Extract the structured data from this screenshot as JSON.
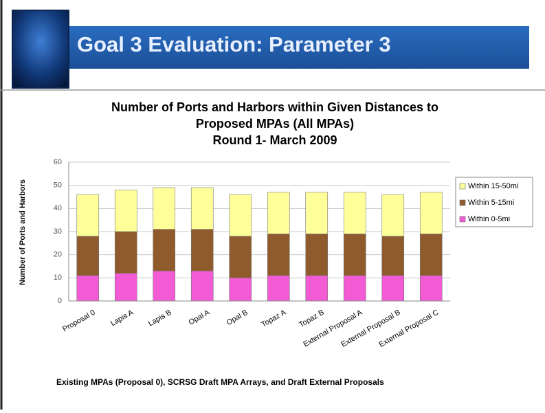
{
  "header": {
    "title": "Goal 3 Evaluation: Parameter 3"
  },
  "chart_data": {
    "type": "stacked-bar",
    "title": [
      "Number of Ports and Harbors within Given Distances to",
      "Proposed MPAs (All MPAs)",
      "Round 1- March 2009"
    ],
    "ylabel": "Number of Ports and Harbors",
    "xlabel": "Existing MPAs (Proposal 0), SCRSG Draft MPA Arrays, and Draft External Proposals",
    "categories": [
      "Proposal 0",
      "Lapis A",
      "Lapis B",
      "Opal A",
      "Opal B",
      "Topaz A",
      "Topaz B",
      "External Proposal A",
      "External Proposal B",
      "External Proposal C"
    ],
    "series": [
      {
        "name": "Within 0-5mi",
        "color": "#f25bd3",
        "values": [
          11,
          12,
          13,
          13,
          10,
          11,
          11,
          11,
          11,
          11
        ]
      },
      {
        "name": "Within 5-15mi",
        "color": "#8f5a2c",
        "values": [
          17,
          18,
          18,
          18,
          18,
          18,
          18,
          18,
          17,
          18
        ]
      },
      {
        "name": "Within 15-50mi",
        "color": "#ffff99",
        "values": [
          18,
          18,
          18,
          18,
          18,
          18,
          18,
          18,
          18,
          18
        ]
      }
    ],
    "ylim": [
      0,
      60
    ],
    "yticks": [
      0,
      10,
      20,
      30,
      40,
      50,
      60
    ],
    "grid": true,
    "legend": "right"
  }
}
